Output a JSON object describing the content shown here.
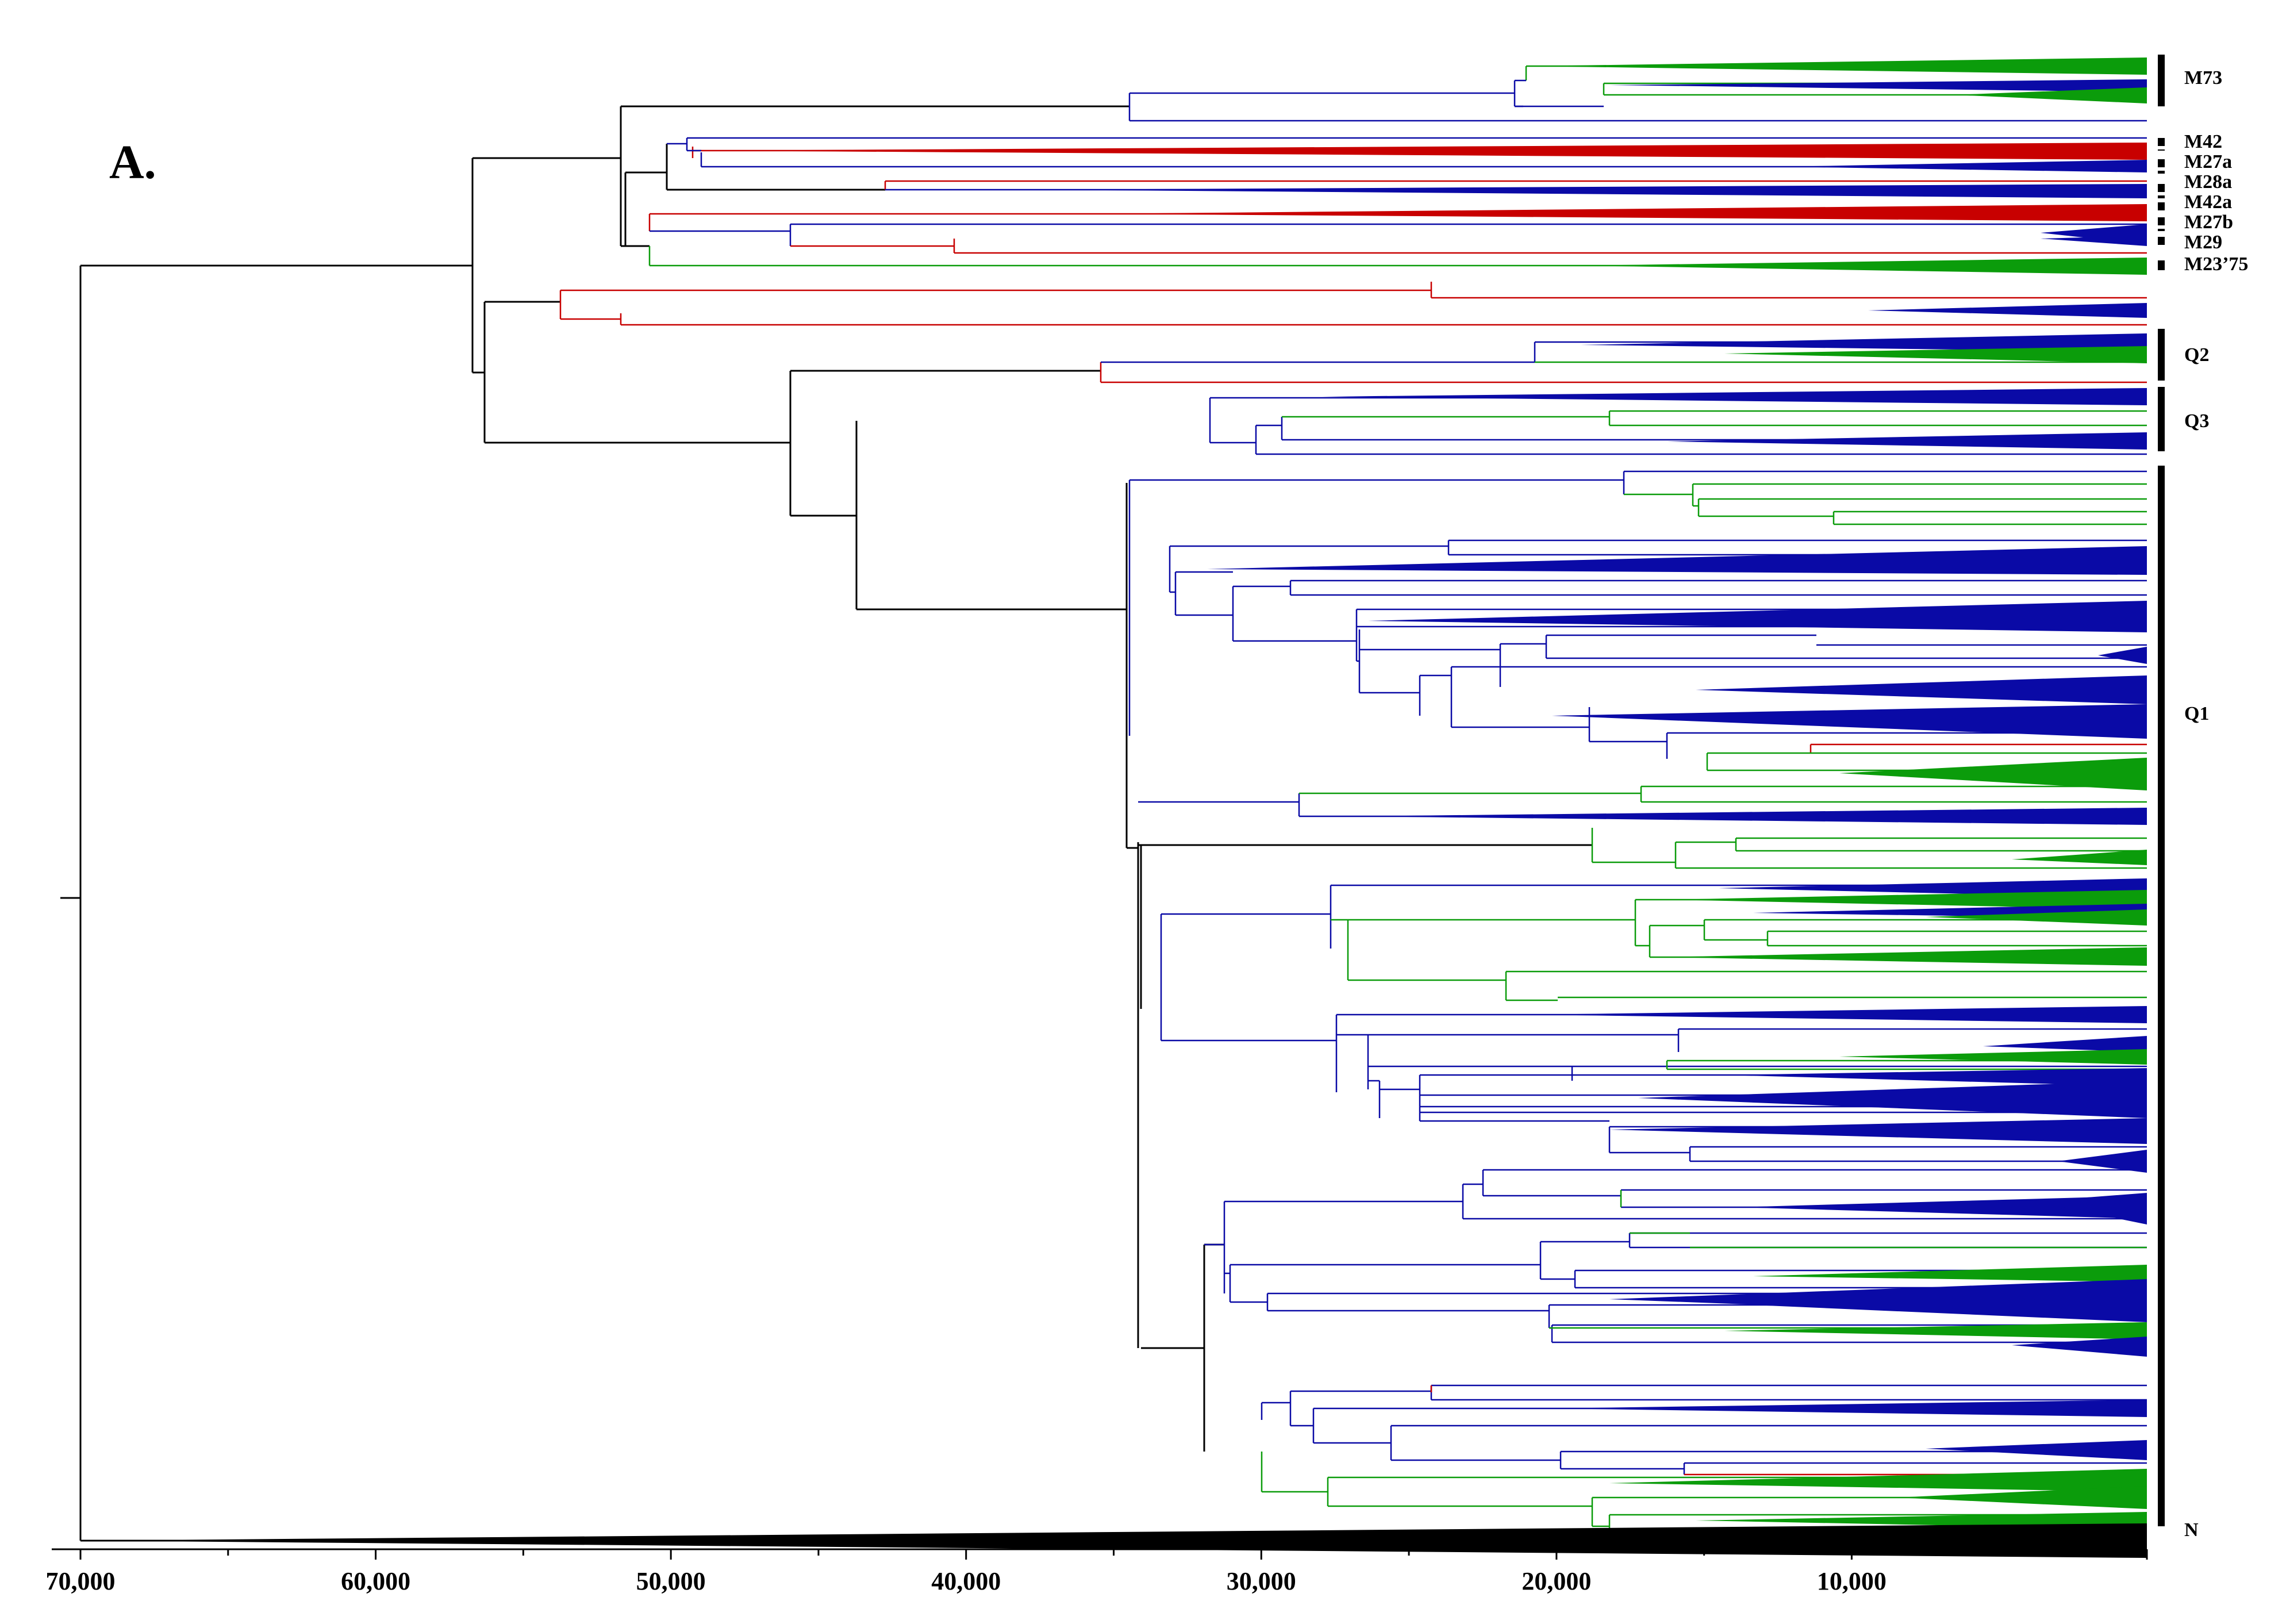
{
  "panel_label": "A.",
  "colors": {
    "black": "#000000",
    "blue": "#0a0aa6",
    "green": "#0b9c0b",
    "red": "#c80000"
  },
  "axis": {
    "labels": [
      "70,000",
      "60,000",
      "50,000",
      "40,000",
      "30,000",
      "20,000",
      "10,000"
    ],
    "values": [
      70000,
      60000,
      50000,
      40000,
      30000,
      20000,
      10000
    ]
  },
  "clades": [
    {
      "label": "M73",
      "style": "solid"
    },
    {
      "label": "M42",
      "style": "dashed"
    },
    {
      "label": "M27a",
      "style": "dashed"
    },
    {
      "label": "M28a",
      "style": "dashed"
    },
    {
      "label": "M42a",
      "style": "dashed"
    },
    {
      "label": "M27b",
      "style": "dashed"
    },
    {
      "label": "M29",
      "style": "dashed"
    },
    {
      "label": "M23’75",
      "style": "dashed"
    },
    {
      "label": "Q2",
      "style": "solid"
    },
    {
      "label": "Q3",
      "style": "solid"
    },
    {
      "label": "Q1",
      "style": "solid"
    },
    {
      "label": "N",
      "style": "solid"
    }
  ]
}
